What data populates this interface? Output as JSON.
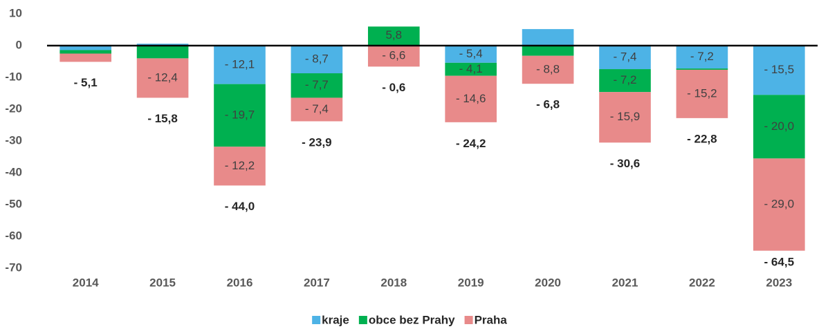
{
  "chart_data": {
    "type": "stacked_bar",
    "categories": [
      "2014",
      "2015",
      "2016",
      "2017",
      "2018",
      "2019",
      "2020",
      "2021",
      "2022",
      "2023"
    ],
    "series": [
      {
        "name": "kraje",
        "color": "#4db3e6",
        "values": [
          -1.4,
          0.6,
          -12.1,
          -8.7,
          0.2,
          -5.4,
          5.2,
          -7.4,
          -7.2,
          -15.5
        ],
        "value_labels": [
          null,
          null,
          "- 12,1",
          "- 8,7",
          null,
          "- 5,4",
          null,
          "- 7,4",
          "- 7,2",
          "- 15,5"
        ]
      },
      {
        "name": "obce bez Prahy",
        "color": "#00b050",
        "values": [
          -1.1,
          -4.0,
          -19.7,
          -7.7,
          5.8,
          -4.1,
          -3.2,
          -7.2,
          -0.4,
          -20.0
        ],
        "value_labels": [
          null,
          null,
          "- 19,7",
          "- 7,7",
          "5,8",
          "- 4,1",
          null,
          "- 7,2",
          null,
          "- 20,0"
        ]
      },
      {
        "name": "Praha",
        "color": "#e88a8a",
        "values": [
          -2.6,
          -12.4,
          -12.2,
          -7.4,
          -6.6,
          -14.6,
          -8.8,
          -15.9,
          -15.2,
          -29.0
        ],
        "value_labels": [
          null,
          "- 12,4",
          "- 12,2",
          "- 7,4",
          "- 6,6",
          "- 14,6",
          "- 8,8",
          "- 15,9",
          "- 15,2",
          "- 29,0"
        ]
      }
    ],
    "totals": [
      -5.1,
      -15.8,
      -44.0,
      -23.9,
      -0.6,
      -24.2,
      -6.8,
      -30.6,
      -22.8,
      -64.5
    ],
    "total_labels": [
      "- 5,1",
      "- 15,8",
      "- 44,0",
      "- 23,9",
      "- 0,6",
      "- 24,2",
      "- 6,8",
      "- 30,6",
      "- 22,8",
      "- 64,5"
    ],
    "ylim": [
      -70,
      10
    ],
    "yticks": [
      10,
      0,
      -10,
      -20,
      -30,
      -40,
      -50,
      -60,
      -70
    ],
    "grid": false,
    "legend": "bottom"
  }
}
